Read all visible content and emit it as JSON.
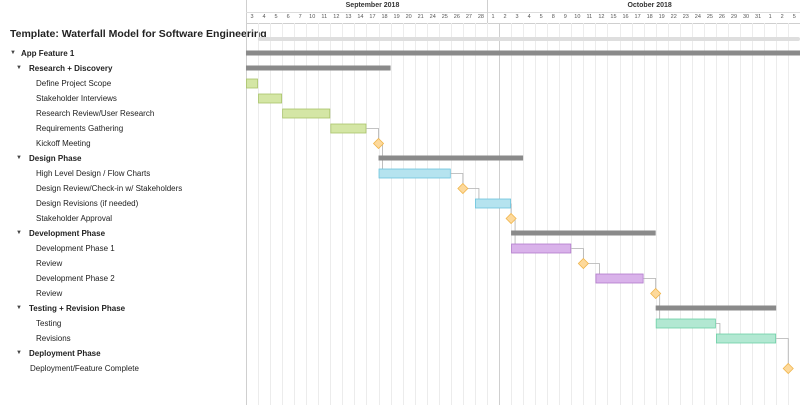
{
  "header": {
    "title": "Template: Waterfall Model for Software Engineering"
  },
  "timeline": {
    "months": [
      {
        "label": "September 2018"
      },
      {
        "label": "October 2018"
      }
    ],
    "days": [
      "3",
      "4",
      "5",
      "6",
      "7",
      "10",
      "11",
      "12",
      "13",
      "14",
      "17",
      "18",
      "19",
      "20",
      "21",
      "24",
      "25",
      "26",
      "27",
      "28",
      "1",
      "2",
      "3",
      "4",
      "5",
      "8",
      "9",
      "10",
      "11",
      "12",
      "15",
      "16",
      "17",
      "18",
      "19",
      "22",
      "23",
      "24",
      "25",
      "26",
      "29",
      "30",
      "31",
      "1",
      "2",
      "5"
    ],
    "month_starts_at_index": [
      0,
      20
    ]
  },
  "tasks": [
    {
      "label": "App Feature 1",
      "level": 0,
      "group": true
    },
    {
      "label": "Research + Discovery",
      "level": 1,
      "group": true
    },
    {
      "label": "Define Project Scope",
      "level": 2,
      "group": false
    },
    {
      "label": "Stakeholder Interviews",
      "level": 2,
      "group": false
    },
    {
      "label": "Research Review/User Research",
      "level": 2,
      "group": false
    },
    {
      "label": "Requirements Gathering",
      "level": 2,
      "group": false
    },
    {
      "label": "Kickoff Meeting",
      "level": 2,
      "group": false
    },
    {
      "label": "Design Phase",
      "level": 1,
      "group": true
    },
    {
      "label": "High Level Design / Flow Charts",
      "level": 2,
      "group": false
    },
    {
      "label": "Design Review/Check-in w/ Stakeholders",
      "level": 2,
      "group": false
    },
    {
      "label": "Design Revisions (if needed)",
      "level": 2,
      "group": false
    },
    {
      "label": "Stakeholder Approval",
      "level": 2,
      "group": false
    },
    {
      "label": "Development Phase",
      "level": 1,
      "group": true
    },
    {
      "label": "Development Phase 1",
      "level": 2,
      "group": false
    },
    {
      "label": "Review",
      "level": 2,
      "group": false
    },
    {
      "label": "Development Phase 2",
      "level": 2,
      "group": false
    },
    {
      "label": "Review",
      "level": 2,
      "group": false
    },
    {
      "label": "Testing + Revision Phase",
      "level": 1,
      "group": true
    },
    {
      "label": "Testing",
      "level": 2,
      "group": false
    },
    {
      "label": "Revisions",
      "level": 2,
      "group": false
    },
    {
      "label": "Deployment Phase",
      "level": 1,
      "group": true
    },
    {
      "label": "Deployment/Feature Complete",
      "level": 2,
      "group": false,
      "no_indent": true
    }
  ],
  "bars": [
    {
      "row": 0,
      "type": "summary",
      "start_day": 0,
      "end_day": 45
    },
    {
      "row": 1,
      "type": "summary",
      "start_day": 0,
      "end_day": 11
    },
    {
      "row": 2,
      "type": "task",
      "start_day": 0,
      "end_day": 0,
      "color": "#d4e6a5",
      "border": "#a9c46a"
    },
    {
      "row": 3,
      "type": "task",
      "start_day": 1,
      "end_day": 2,
      "color": "#d4e6a5",
      "border": "#a9c46a"
    },
    {
      "row": 4,
      "type": "task",
      "start_day": 3,
      "end_day": 6,
      "color": "#d4e6a5",
      "border": "#a9c46a"
    },
    {
      "row": 5,
      "type": "task",
      "start_day": 7,
      "end_day": 9,
      "color": "#d4e6a5",
      "border": "#a9c46a"
    },
    {
      "row": 6,
      "type": "milestone",
      "start_day": 10.5,
      "color": "#fdd99b",
      "border": "#f0b54b"
    },
    {
      "row": 7,
      "type": "summary",
      "start_day": 11,
      "end_day": 22
    },
    {
      "row": 8,
      "type": "task",
      "start_day": 11,
      "end_day": 16,
      "color": "#b5e3ef",
      "border": "#6cc4dc"
    },
    {
      "row": 9,
      "type": "milestone",
      "start_day": 17.5,
      "color": "#fdd99b",
      "border": "#f0b54b"
    },
    {
      "row": 10,
      "type": "task",
      "start_day": 19,
      "end_day": 21,
      "color": "#b5e3ef",
      "border": "#6cc4dc"
    },
    {
      "row": 11,
      "type": "milestone",
      "start_day": 21.5,
      "color": "#fdd99b",
      "border": "#f0b54b"
    },
    {
      "row": 12,
      "type": "summary",
      "start_day": 22,
      "end_day": 33
    },
    {
      "row": 13,
      "type": "task",
      "start_day": 22,
      "end_day": 26,
      "color": "#d9b2ea",
      "border": "#b179cc"
    },
    {
      "row": 14,
      "type": "milestone",
      "start_day": 27.5,
      "color": "#fdd99b",
      "border": "#f0b54b"
    },
    {
      "row": 15,
      "type": "task",
      "start_day": 29,
      "end_day": 32,
      "color": "#d9b2ea",
      "border": "#b179cc"
    },
    {
      "row": 16,
      "type": "milestone",
      "start_day": 33.5,
      "color": "#fdd99b",
      "border": "#f0b54b"
    },
    {
      "row": 17,
      "type": "summary",
      "start_day": 34,
      "end_day": 43
    },
    {
      "row": 18,
      "type": "task",
      "start_day": 34,
      "end_day": 38,
      "color": "#b2e8d2",
      "border": "#6ccfa6"
    },
    {
      "row": 19,
      "type": "task",
      "start_day": 39,
      "end_day": 43,
      "color": "#b2e8d2",
      "border": "#6ccfa6"
    },
    {
      "row": 21,
      "type": "milestone",
      "start_day": 44.5,
      "color": "#fdd99b",
      "border": "#f0b54b"
    }
  ],
  "dependencies": [
    {
      "from_row": 5,
      "to_row": 6
    },
    {
      "from_row": 6,
      "to_row": 8
    },
    {
      "from_row": 8,
      "to_row": 9
    },
    {
      "from_row": 9,
      "to_row": 10
    },
    {
      "from_row": 10,
      "to_row": 11
    },
    {
      "from_row": 11,
      "to_row": 13
    },
    {
      "from_row": 13,
      "to_row": 14
    },
    {
      "from_row": 14,
      "to_row": 15
    },
    {
      "from_row": 15,
      "to_row": 16
    },
    {
      "from_row": 16,
      "to_row": 18
    },
    {
      "from_row": 18,
      "to_row": 19
    },
    {
      "from_row": 19,
      "to_row": 21
    }
  ],
  "colors": {
    "summary": "#8a8a8a",
    "grid": "#ececec",
    "milestone": "#fdd99b"
  }
}
